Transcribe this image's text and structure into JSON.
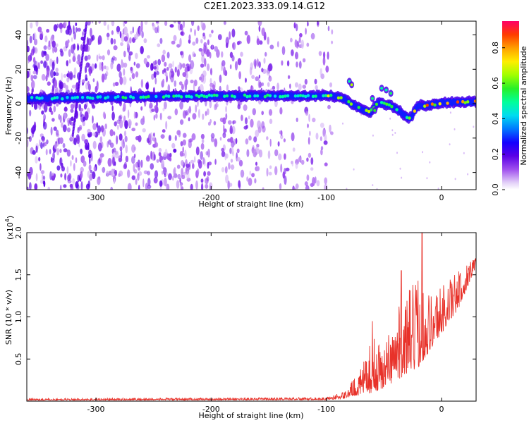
{
  "title": "C2E1.2023.333.09.14.G12",
  "chart_data": [
    {
      "type": "heatmap",
      "xlabel": "Height of straight line (km)",
      "ylabel": "Frequency (Hz)",
      "xlim": [
        -360,
        30
      ],
      "ylim": [
        -50,
        48
      ],
      "xticks": [
        -300,
        -200,
        -100,
        0
      ],
      "yticks": [
        -40,
        -20,
        0,
        20,
        40
      ],
      "colorbar": {
        "label": "Normalized spectral amplitude",
        "range": [
          0.0,
          0.95
        ],
        "ticks": [
          0.0,
          0.2,
          0.4,
          0.6,
          0.8
        ]
      },
      "ridge": [
        {
          "x": -360,
          "y": 3
        },
        {
          "x": -300,
          "y": 3.5
        },
        {
          "x": -250,
          "y": 4
        },
        {
          "x": -200,
          "y": 4.5
        },
        {
          "x": -150,
          "y": 4.5
        },
        {
          "x": -110,
          "y": 4.5
        },
        {
          "x": -95,
          "y": 4.5
        },
        {
          "x": -85,
          "y": 3
        },
        {
          "x": -78,
          "y": 0
        },
        {
          "x": -70,
          "y": -3
        },
        {
          "x": -62,
          "y": -5
        },
        {
          "x": -55,
          "y": 1
        },
        {
          "x": -45,
          "y": -1
        },
        {
          "x": -35,
          "y": -5
        },
        {
          "x": -28,
          "y": -9
        },
        {
          "x": -20,
          "y": -1
        },
        {
          "x": -10,
          "y": -1
        },
        {
          "x": 0,
          "y": 0.5
        },
        {
          "x": 15,
          "y": 1
        },
        {
          "x": 30,
          "y": 1
        }
      ]
    },
    {
      "type": "line",
      "xlabel": "Height of straight line (km)",
      "ylabel": "SNR (10 * v/v)",
      "yscale_label": "(x10",
      "yscale_exp": "4",
      "y_multiplier": 10000,
      "xlim": [
        -360,
        30
      ],
      "ylim": [
        0,
        2.0
      ],
      "xticks": [
        -300,
        -200,
        -100,
        0
      ],
      "yticks": [
        0.5,
        1.0,
        1.5,
        2.0
      ],
      "color": "#e8322a",
      "envelope": [
        {
          "x": -360,
          "base": 0.01,
          "amp": 0.02
        },
        {
          "x": -100,
          "base": 0.015,
          "amp": 0.03
        },
        {
          "x": -85,
          "base": 0.03,
          "amp": 0.08
        },
        {
          "x": -70,
          "base": 0.08,
          "amp": 0.3
        },
        {
          "x": -60,
          "base": 0.1,
          "amp": 0.65
        },
        {
          "x": -50,
          "base": 0.15,
          "amp": 0.55
        },
        {
          "x": -40,
          "base": 0.25,
          "amp": 0.8
        },
        {
          "x": -30,
          "base": 0.3,
          "amp": 1.0
        },
        {
          "x": -20,
          "base": 0.4,
          "amp": 1.1
        },
        {
          "x": -10,
          "base": 0.6,
          "amp": 0.7
        },
        {
          "x": 0,
          "base": 0.8,
          "amp": 0.6
        },
        {
          "x": 15,
          "base": 1.1,
          "amp": 0.45
        },
        {
          "x": 30,
          "base": 1.6,
          "amp": 0.15
        }
      ],
      "peaks": [
        {
          "x": -17,
          "y": 2.0
        },
        {
          "x": -60,
          "y": 0.95
        },
        {
          "x": -35,
          "y": 1.55
        }
      ]
    }
  ]
}
